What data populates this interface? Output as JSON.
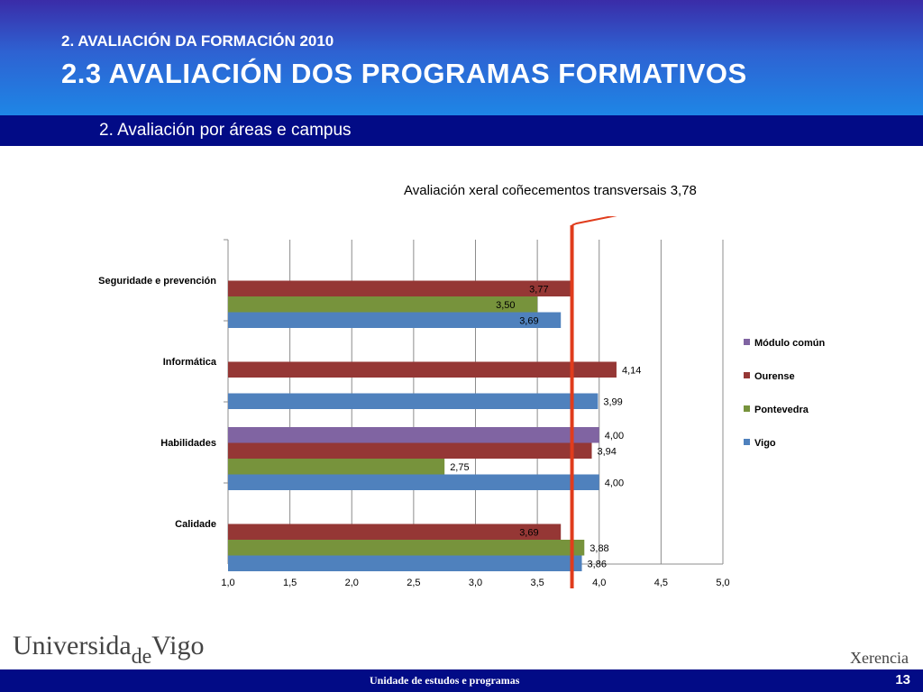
{
  "header": {
    "kicker": "2. AVALIACIÓN DA FORMACIÓN 2010",
    "title": "2.3 AVALIACIÓN DOS PROGRAMAS FORMATIVOS",
    "subtitle": "2. Avaliación por áreas e campus"
  },
  "annotation": "Avaliación xeral coñecementos transversais 3,78",
  "footer": {
    "logo_left_a": "Universida",
    "logo_left_b": "de",
    "logo_left_c": "Vigo",
    "logo_right": "Xerencia",
    "unit": "Unidade de estudos e programas",
    "page_number": "13"
  },
  "colors": {
    "modulo": "#8064a2",
    "ourense": "#953735",
    "pontevedra": "#77933c",
    "vigo": "#4f81bd",
    "reference_line": "#e03c1c"
  },
  "chart_data": {
    "type": "bar",
    "orientation": "horizontal",
    "categories": [
      "Seguridade e prevención",
      "Informática",
      "Habilidades",
      "Calidade"
    ],
    "series": [
      {
        "name": "Módulo común",
        "values": [
          null,
          null,
          4.0,
          null
        ]
      },
      {
        "name": "Ourense",
        "values": [
          3.77,
          4.14,
          3.94,
          3.69
        ]
      },
      {
        "name": "Pontevedra",
        "values": [
          3.5,
          null,
          2.75,
          3.88
        ]
      },
      {
        "name": "Vigo",
        "values": [
          3.69,
          3.99,
          4.0,
          3.86
        ]
      }
    ],
    "data_labels": [
      [
        "",
        "3,77",
        "3,50",
        "3,69"
      ],
      [
        "",
        "4,14",
        "",
        "3,99"
      ],
      [
        "4,00",
        "3,94",
        "2,75",
        "4,00"
      ],
      [
        "",
        "3,69",
        "3,88",
        "3,86"
      ]
    ],
    "xlim": [
      1.0,
      5.0
    ],
    "xticks": [
      "1,0",
      "1,5",
      "2,0",
      "2,5",
      "3,0",
      "3,5",
      "4,0",
      "4,5",
      "5,0"
    ],
    "reference_value": 3.78,
    "grid": true,
    "legend_position": "right"
  }
}
